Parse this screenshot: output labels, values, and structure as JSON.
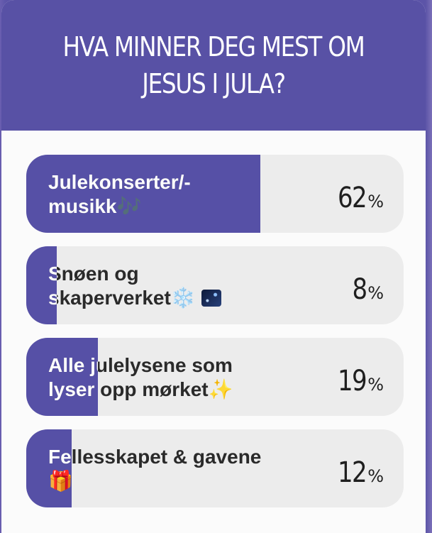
{
  "poll": {
    "question_line1": "HVA MINNER DEG MEST OM",
    "question_line2": "JESUS I JULA?",
    "options": [
      {
        "label_line1": "Julekonserter/-",
        "label_line2": "musikk",
        "emoji": "🎶",
        "percent": 62,
        "percent_text": "62",
        "sign": "%"
      },
      {
        "label_line1": "Snøen og",
        "label_line2": "skaperverket",
        "emoji": "❄️",
        "emoji2": "🌌",
        "percent": 8,
        "percent_text": "8",
        "sign": "%"
      },
      {
        "label_line1": "Alle julelysene som",
        "label_line2": "lyser opp mørket",
        "emoji": "✨",
        "percent": 19,
        "percent_text": "19",
        "sign": "%"
      },
      {
        "label_line1": "Fellesskapet & gavene",
        "label_line2": "",
        "emoji": "🎁",
        "percent": 12,
        "percent_text": "12",
        "sign": "%"
      }
    ]
  },
  "colors": {
    "header": "#5851a5",
    "fill": "#5650a6",
    "track": "#ececec"
  }
}
